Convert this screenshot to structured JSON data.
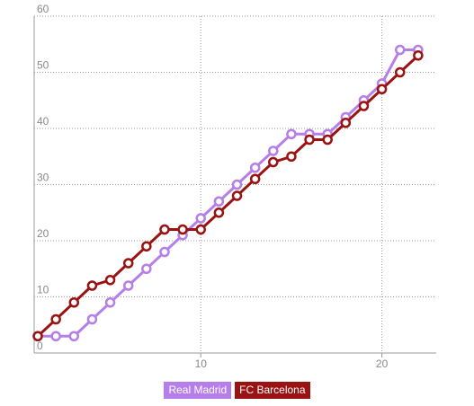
{
  "chart_data": {
    "type": "line",
    "title": "",
    "xlabel": "",
    "ylabel": "",
    "xlim": [
      0.8,
      23
    ],
    "ylim": [
      0,
      60
    ],
    "x_ticks": [
      10,
      20
    ],
    "y_ticks": [
      0,
      10,
      20,
      30,
      40,
      50,
      60
    ],
    "x_tick_labels": [
      "10",
      "20"
    ],
    "y_tick_labels": [
      "0",
      "10",
      "20",
      "30",
      "40",
      "50",
      "60"
    ],
    "grid": true,
    "legend_position": "bottom-center",
    "x": [
      1,
      2,
      3,
      4,
      5,
      6,
      7,
      8,
      9,
      10,
      11,
      12,
      13,
      14,
      15,
      16,
      17,
      18,
      19,
      20,
      21,
      22
    ],
    "series": [
      {
        "name": "Real Madrid",
        "color": "#b57ee8",
        "values": [
          3,
          3,
          3,
          6,
          9,
          12,
          15,
          18,
          21,
          24,
          27,
          30,
          33,
          36,
          39,
          39,
          39,
          42,
          45,
          48,
          54,
          54
        ]
      },
      {
        "name": "FC Barcelona",
        "color": "#9b1212",
        "values": [
          3,
          6,
          9,
          12,
          13,
          16,
          19,
          22,
          22,
          22,
          25,
          28,
          31,
          34,
          35,
          38,
          38,
          41,
          44,
          47,
          50,
          53
        ]
      }
    ]
  }
}
